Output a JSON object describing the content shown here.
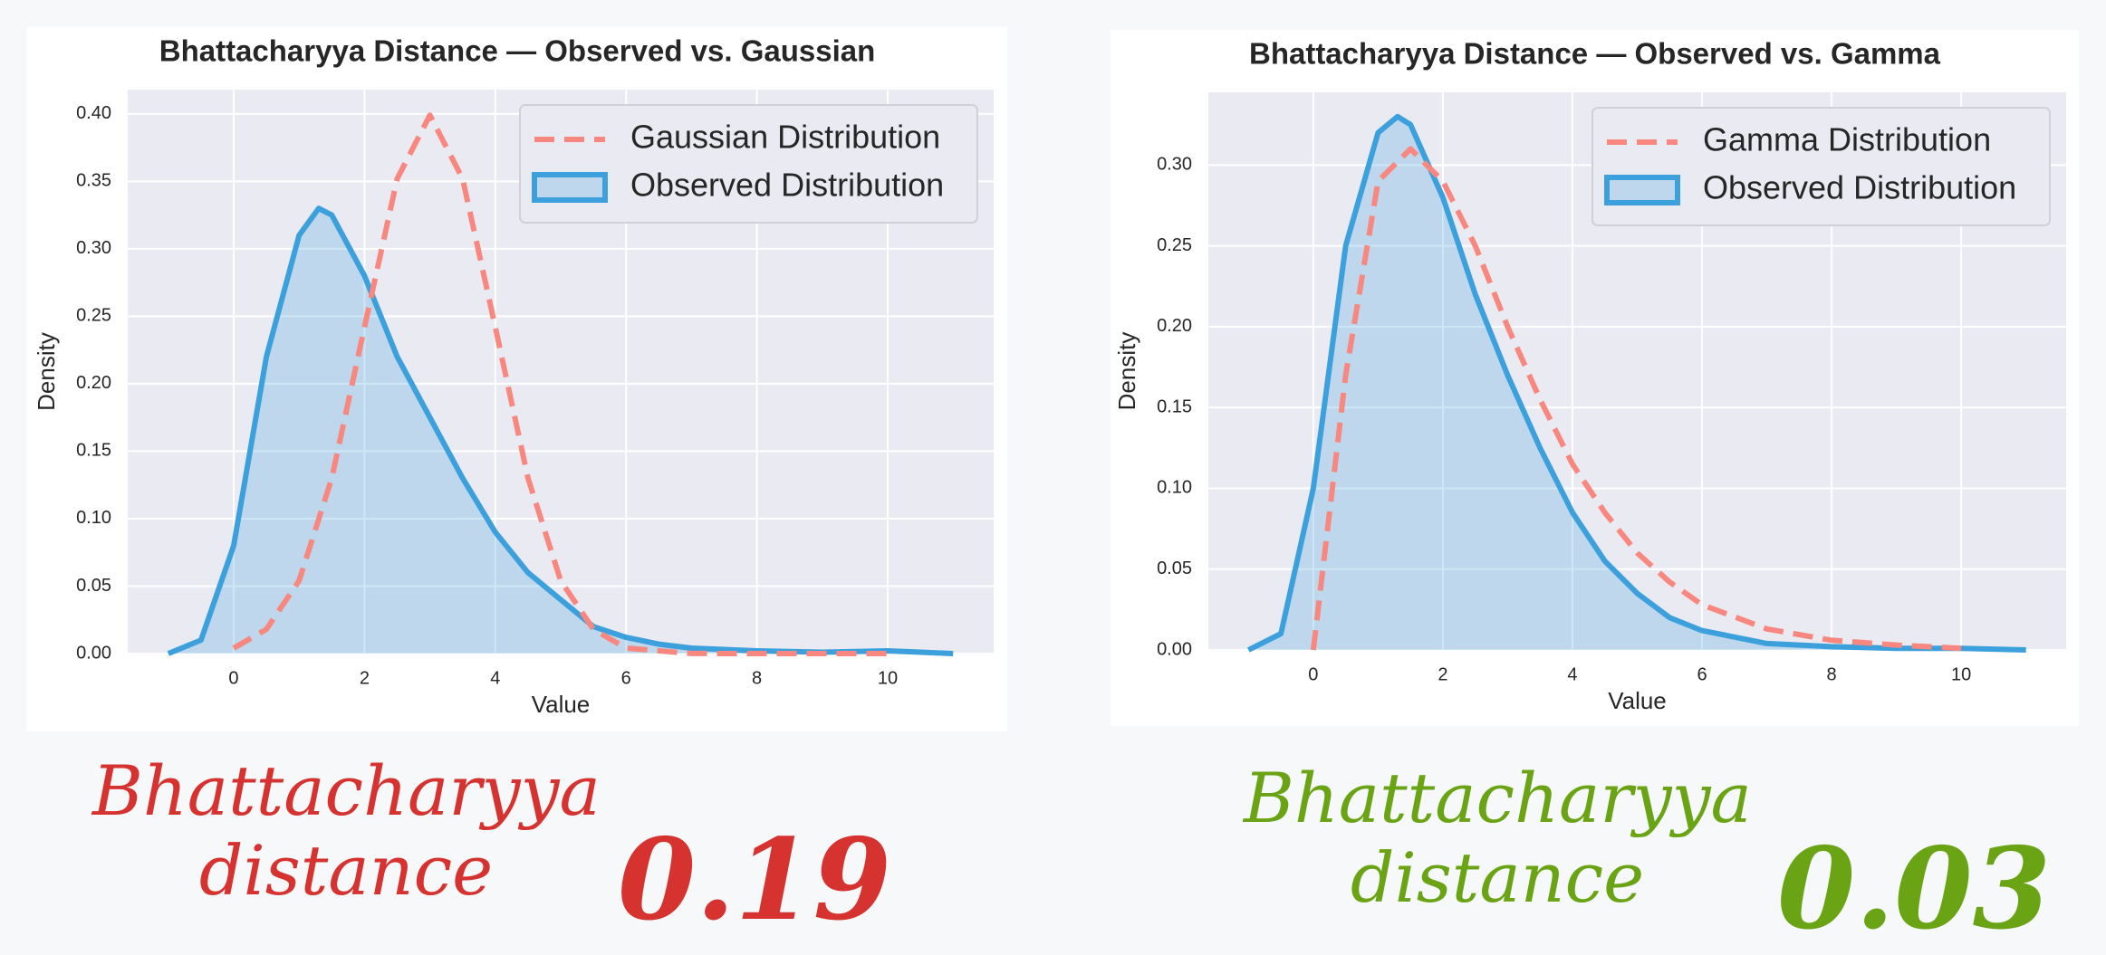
{
  "chart_data": [
    {
      "type": "line",
      "title": "Bhattacharyya Distance — Observed  vs. Gaussian",
      "x_label": "Value",
      "y_label": "Density",
      "xlim": [
        -1.62,
        11.62
      ],
      "ylim": [
        0,
        0.418
      ],
      "xticks": [
        0,
        2,
        4,
        6,
        8,
        10
      ],
      "yticks": [
        {
          "value": 0,
          "label": "0.00"
        },
        {
          "value": 0.05,
          "label": "0.05"
        },
        {
          "value": 0.1,
          "label": "0.10"
        },
        {
          "value": 0.15,
          "label": "0.15"
        },
        {
          "value": 0.2,
          "label": "0.20"
        },
        {
          "value": 0.25,
          "label": "0.25"
        },
        {
          "value": 0.3,
          "label": "0.30"
        },
        {
          "value": 0.35,
          "label": "0.35"
        },
        {
          "value": 0.4,
          "label": "0.40"
        }
      ],
      "grid": true,
      "legend": "upper right",
      "series": [
        {
          "name": "Gaussian Distribution",
          "color": "#f8877f",
          "dashed": true,
          "fill": false,
          "x": [
            0,
            0.5,
            1,
            1.5,
            2,
            2.5,
            3,
            3.5,
            4,
            4.5,
            5,
            5.5,
            6,
            7,
            8,
            9,
            10
          ],
          "values": [
            0.004,
            0.018,
            0.054,
            0.13,
            0.242,
            0.352,
            0.399,
            0.352,
            0.242,
            0.13,
            0.054,
            0.018,
            0.004,
            0.0001,
            0,
            0,
            0
          ]
        },
        {
          "name": "Observed Distribution",
          "color": "#3ca0dc",
          "dashed": false,
          "fill": true,
          "x": [
            -1,
            -0.5,
            0,
            0.5,
            1,
            1.3,
            1.5,
            2,
            2.5,
            3,
            3.5,
            4,
            4.5,
            5,
            5.5,
            6,
            6.5,
            7,
            8,
            9,
            10,
            11
          ],
          "values": [
            0,
            0.01,
            0.08,
            0.22,
            0.31,
            0.33,
            0.325,
            0.28,
            0.22,
            0.175,
            0.13,
            0.09,
            0.06,
            0.04,
            0.02,
            0.012,
            0.007,
            0.004,
            0.002,
            0.001,
            0.002,
            0
          ]
        }
      ],
      "annotation": {
        "label": "Bhattacharyya distance",
        "value": 0.19,
        "color": "#d63330"
      }
    },
    {
      "type": "line",
      "title": "Bhattacharyya Distance — Observed  vs. Gamma",
      "x_label": "Value",
      "y_label": "Density",
      "xlim": [
        -1.62,
        11.62
      ],
      "ylim": [
        0,
        0.345
      ],
      "xticks": [
        0,
        2,
        4,
        6,
        8,
        10
      ],
      "yticks": [
        {
          "value": 0,
          "label": "0.00"
        },
        {
          "value": 0.05,
          "label": "0.05"
        },
        {
          "value": 0.1,
          "label": "0.10"
        },
        {
          "value": 0.15,
          "label": "0.15"
        },
        {
          "value": 0.2,
          "label": "0.20"
        },
        {
          "value": 0.25,
          "label": "0.25"
        },
        {
          "value": 0.3,
          "label": "0.30"
        }
      ],
      "grid": true,
      "legend": "upper right",
      "series": [
        {
          "name": "Gamma Distribution",
          "color": "#f8877f",
          "dashed": true,
          "fill": false,
          "x": [
            0,
            0.5,
            1,
            1.5,
            2,
            2.5,
            3,
            3.5,
            4,
            4.5,
            5,
            5.5,
            6,
            7,
            8,
            9,
            10
          ],
          "values": [
            0,
            0.17,
            0.29,
            0.31,
            0.29,
            0.25,
            0.2,
            0.155,
            0.115,
            0.085,
            0.06,
            0.042,
            0.028,
            0.013,
            0.006,
            0.003,
            0.001
          ]
        },
        {
          "name": "Observed Distribution",
          "color": "#3ca0dc",
          "dashed": false,
          "fill": true,
          "x": [
            -1,
            -0.5,
            0,
            0.5,
            1,
            1.3,
            1.5,
            2,
            2.5,
            3,
            3.5,
            4,
            4.5,
            5,
            5.5,
            6,
            7,
            8,
            9,
            10,
            11
          ],
          "values": [
            0,
            0.01,
            0.1,
            0.25,
            0.32,
            0.33,
            0.325,
            0.28,
            0.22,
            0.17,
            0.125,
            0.085,
            0.055,
            0.035,
            0.02,
            0.012,
            0.004,
            0.002,
            0.001,
            0.001,
            0
          ]
        }
      ],
      "annotation": {
        "label": "Bhattacharyya distance",
        "value": 0.03,
        "color": "#6aa314"
      }
    }
  ]
}
